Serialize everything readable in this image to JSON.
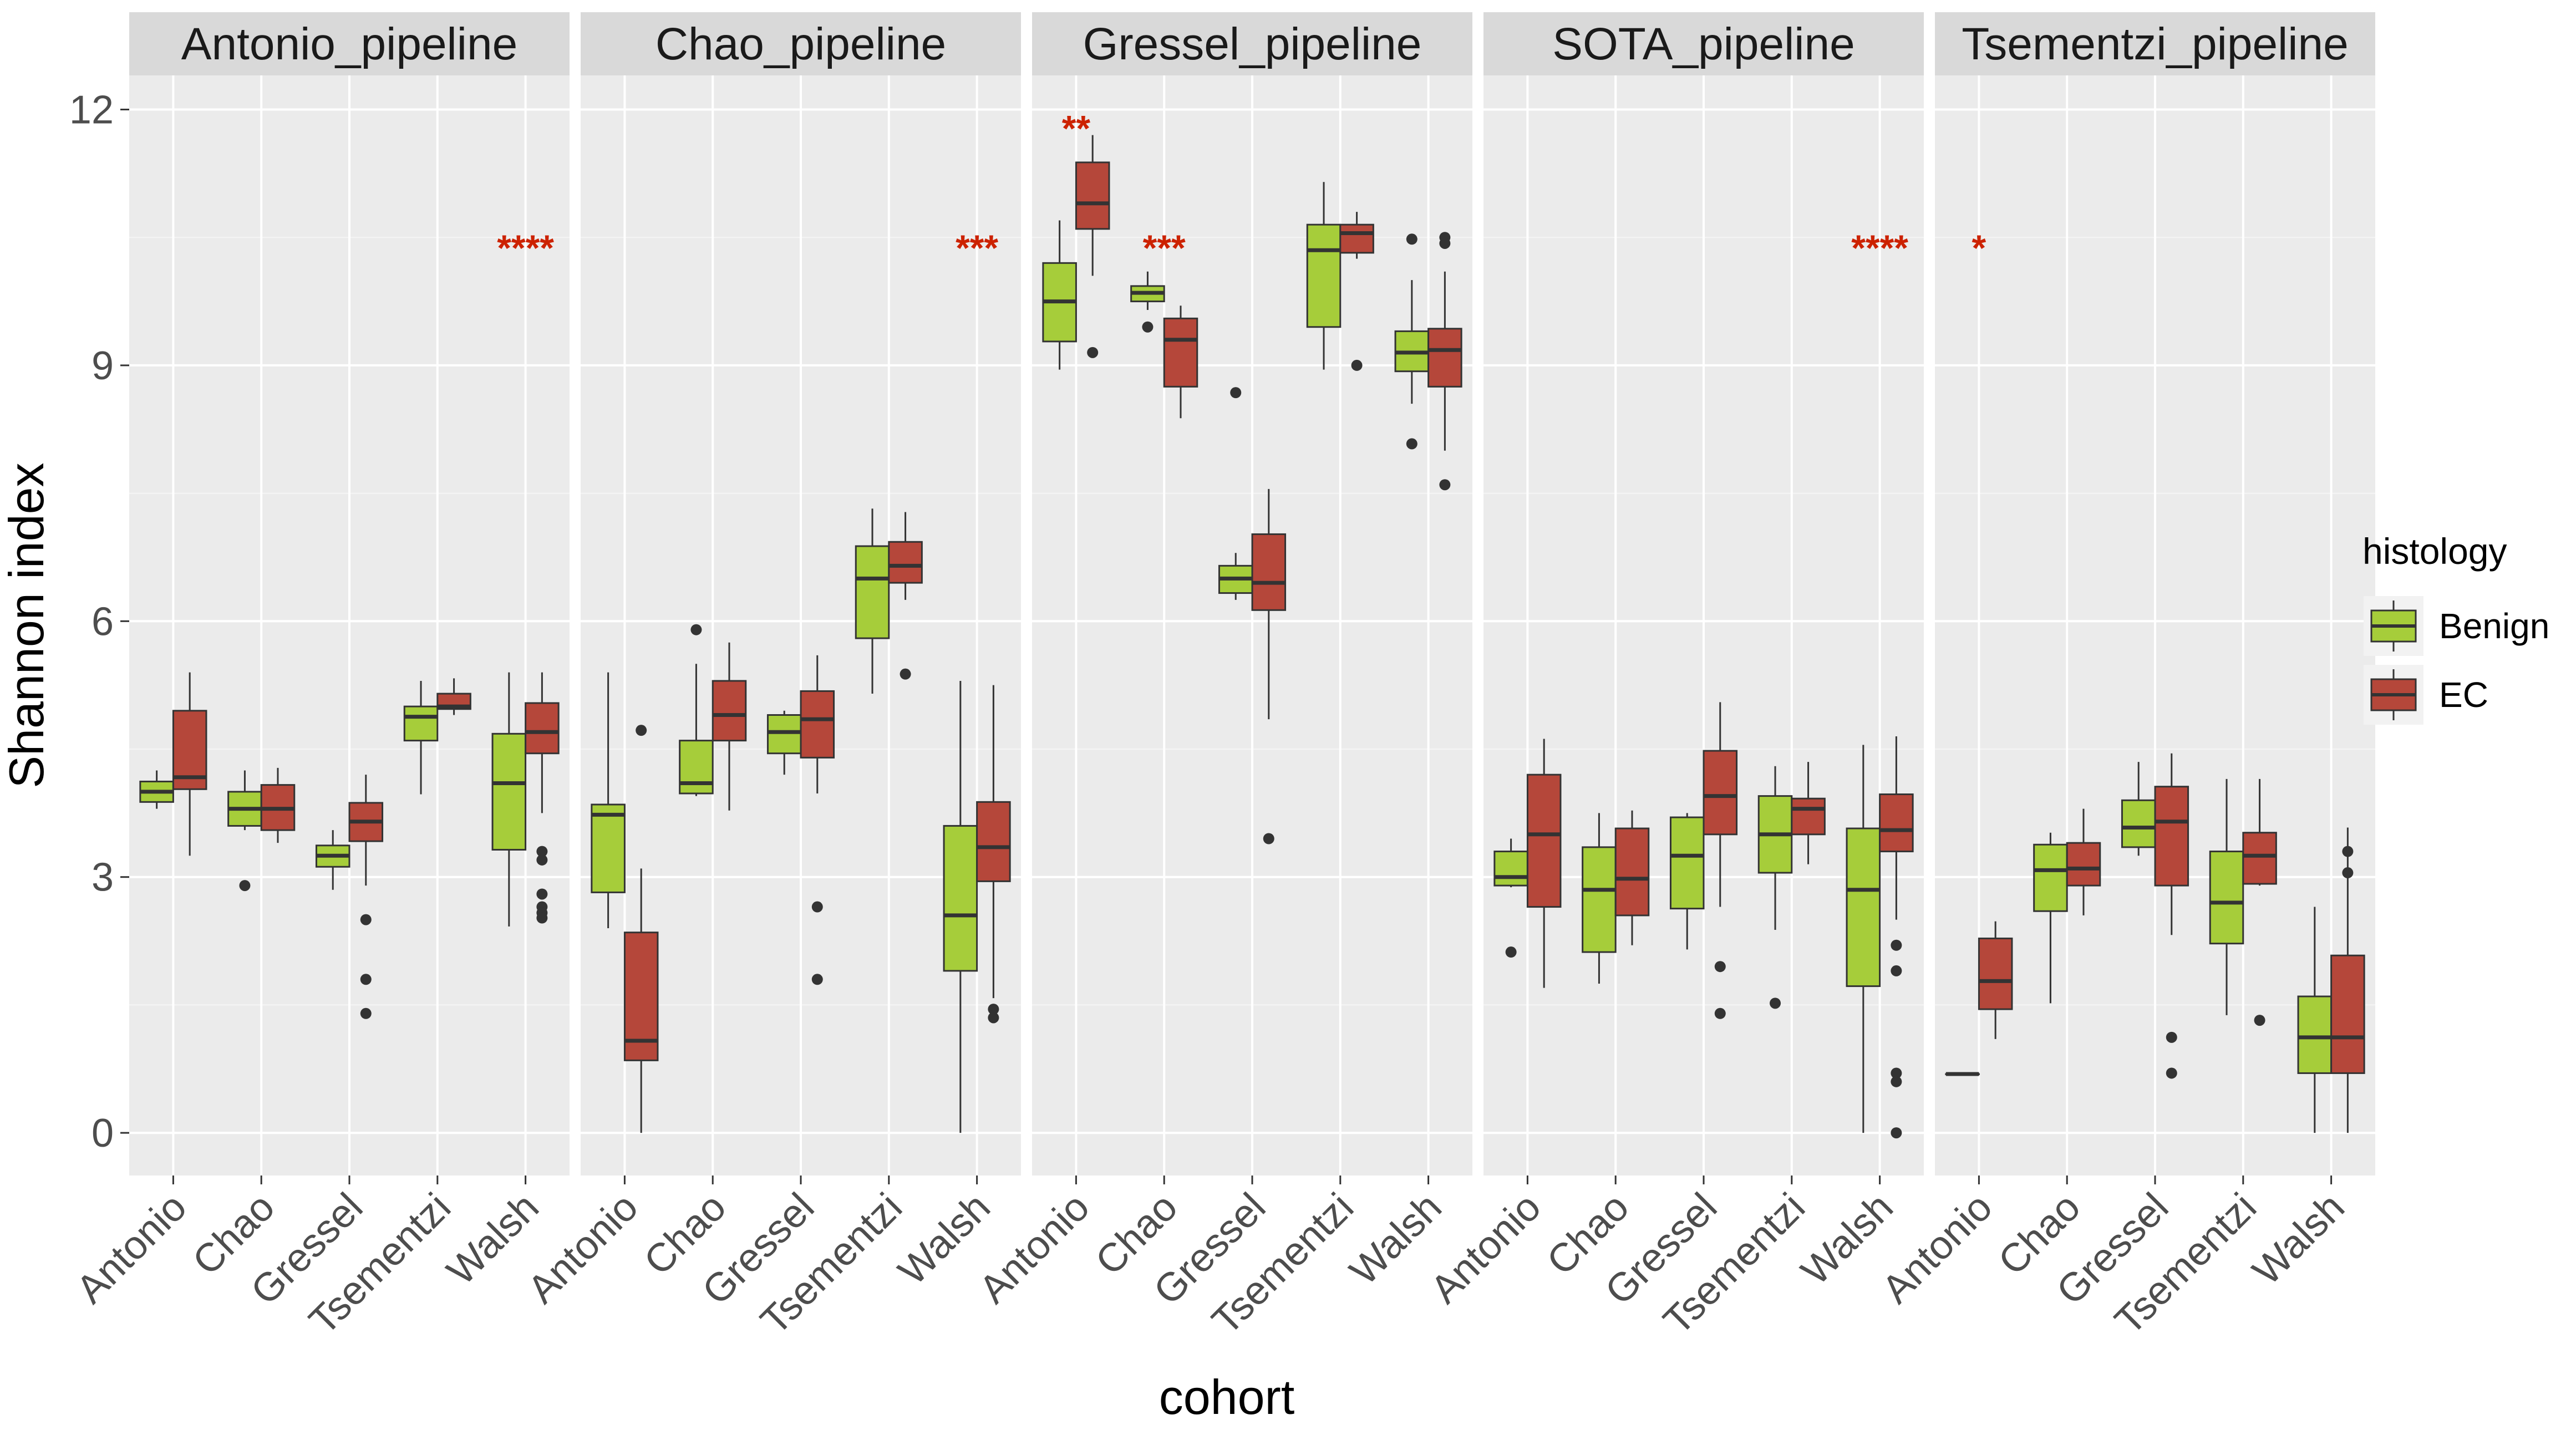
{
  "chart_data": {
    "type": "boxplot",
    "xlabel": "cohort",
    "ylabel": "Shannon index",
    "ylim": [
      -0.5,
      12.4
    ],
    "y_ticks": [
      0,
      3,
      6,
      9,
      12
    ],
    "y_tick_labels": [
      "0",
      "3",
      "6",
      "9",
      "12"
    ],
    "categories": [
      "Antonio",
      "Chao",
      "Gressel",
      "Tsementzi",
      "Walsh"
    ],
    "legend": {
      "title": "histology",
      "position": "right",
      "entries": [
        {
          "name": "Benign",
          "color": "#a6cd3a"
        },
        {
          "name": "EC",
          "color": "#b5473a"
        }
      ]
    },
    "significance_color": "#cc2200",
    "panels": [
      {
        "title": "Antonio_pipeline",
        "significance": [
          {
            "category": "Walsh",
            "label": "****",
            "y": 10.45
          }
        ],
        "boxes": [
          {
            "category": "Antonio",
            "group": "Benign",
            "whisker_low": 3.8,
            "q1": 3.88,
            "median": 4.0,
            "q3": 4.12,
            "whisker_high": 4.25,
            "outliers": []
          },
          {
            "category": "Antonio",
            "group": "EC",
            "whisker_low": 3.25,
            "q1": 4.03,
            "median": 4.17,
            "q3": 4.95,
            "whisker_high": 5.4,
            "outliers": []
          },
          {
            "category": "Chao",
            "group": "Benign",
            "whisker_low": 3.55,
            "q1": 3.6,
            "median": 3.8,
            "q3": 4.0,
            "whisker_high": 4.25,
            "outliers": [
              2.9
            ]
          },
          {
            "category": "Chao",
            "group": "EC",
            "whisker_low": 3.4,
            "q1": 3.55,
            "median": 3.8,
            "q3": 4.08,
            "whisker_high": 4.28,
            "outliers": []
          },
          {
            "category": "Gressel",
            "group": "Benign",
            "whisker_low": 2.85,
            "q1": 3.12,
            "median": 3.25,
            "q3": 3.37,
            "whisker_high": 3.55,
            "outliers": []
          },
          {
            "category": "Gressel",
            "group": "EC",
            "whisker_low": 2.9,
            "q1": 3.42,
            "median": 3.65,
            "q3": 3.87,
            "whisker_high": 4.2,
            "outliers": [
              2.5,
              1.8,
              1.4
            ]
          },
          {
            "category": "Tsementzi",
            "group": "Benign",
            "whisker_low": 3.97,
            "q1": 4.6,
            "median": 4.88,
            "q3": 5.0,
            "whisker_high": 5.3,
            "outliers": []
          },
          {
            "category": "Tsementzi",
            "group": "EC",
            "whisker_low": 4.9,
            "q1": 4.97,
            "median": 5.0,
            "q3": 5.15,
            "whisker_high": 5.33,
            "outliers": []
          },
          {
            "category": "Walsh",
            "group": "Benign",
            "whisker_low": 2.42,
            "q1": 3.32,
            "median": 4.1,
            "q3": 4.68,
            "whisker_high": 5.4,
            "outliers": []
          },
          {
            "category": "Walsh",
            "group": "EC",
            "whisker_low": 3.75,
            "q1": 4.45,
            "median": 4.7,
            "q3": 5.04,
            "whisker_high": 5.4,
            "outliers": [
              3.3,
              3.2,
              2.8,
              2.65,
              2.58,
              2.52
            ]
          }
        ]
      },
      {
        "title": "Chao_pipeline",
        "significance": [
          {
            "category": "Walsh",
            "label": "***",
            "y": 10.45
          }
        ],
        "boxes": [
          {
            "category": "Antonio",
            "group": "Benign",
            "whisker_low": 2.4,
            "q1": 2.82,
            "median": 3.73,
            "q3": 3.85,
            "whisker_high": 5.4,
            "outliers": []
          },
          {
            "category": "Antonio",
            "group": "EC",
            "whisker_low": 0.0,
            "q1": 0.85,
            "median": 1.08,
            "q3": 2.35,
            "whisker_high": 3.1,
            "outliers": [
              4.72
            ]
          },
          {
            "category": "Chao",
            "group": "Benign",
            "whisker_low": 3.95,
            "q1": 3.98,
            "median": 4.1,
            "q3": 4.6,
            "whisker_high": 5.5,
            "outliers": [
              5.9
            ]
          },
          {
            "category": "Chao",
            "group": "EC",
            "whisker_low": 3.78,
            "q1": 4.6,
            "median": 4.9,
            "q3": 5.3,
            "whisker_high": 5.75,
            "outliers": []
          },
          {
            "category": "Gressel",
            "group": "Benign",
            "whisker_low": 4.2,
            "q1": 4.45,
            "median": 4.7,
            "q3": 4.9,
            "whisker_high": 4.95,
            "outliers": []
          },
          {
            "category": "Gressel",
            "group": "EC",
            "whisker_low": 3.98,
            "q1": 4.4,
            "median": 4.85,
            "q3": 5.18,
            "whisker_high": 5.6,
            "outliers": [
              2.65,
              1.8
            ]
          },
          {
            "category": "Tsementzi",
            "group": "Benign",
            "whisker_low": 5.15,
            "q1": 5.8,
            "median": 6.5,
            "q3": 6.88,
            "whisker_high": 7.32,
            "outliers": []
          },
          {
            "category": "Tsementzi",
            "group": "EC",
            "whisker_low": 6.25,
            "q1": 6.45,
            "median": 6.65,
            "q3": 6.93,
            "whisker_high": 7.28,
            "outliers": [
              5.38
            ]
          },
          {
            "category": "Walsh",
            "group": "Benign",
            "whisker_low": 0.0,
            "q1": 1.9,
            "median": 2.55,
            "q3": 3.6,
            "whisker_high": 5.3,
            "outliers": []
          },
          {
            "category": "Walsh",
            "group": "EC",
            "whisker_low": 1.58,
            "q1": 2.95,
            "median": 3.35,
            "q3": 3.88,
            "whisker_high": 5.25,
            "outliers": [
              1.45,
              1.35
            ]
          }
        ]
      },
      {
        "title": "Gressel_pipeline",
        "significance": [
          {
            "category": "Antonio",
            "label": "**",
            "y": 11.85
          },
          {
            "category": "Chao",
            "label": "***",
            "y": 10.45
          }
        ],
        "boxes": [
          {
            "category": "Antonio",
            "group": "Benign",
            "whisker_low": 8.95,
            "q1": 9.28,
            "median": 9.75,
            "q3": 10.2,
            "whisker_high": 10.7,
            "outliers": []
          },
          {
            "category": "Antonio",
            "group": "EC",
            "whisker_low": 10.05,
            "q1": 10.6,
            "median": 10.9,
            "q3": 11.38,
            "whisker_high": 11.7,
            "outliers": [
              9.15
            ]
          },
          {
            "category": "Chao",
            "group": "Benign",
            "whisker_low": 9.65,
            "q1": 9.75,
            "median": 9.85,
            "q3": 9.93,
            "whisker_high": 10.1,
            "outliers": [
              9.45
            ]
          },
          {
            "category": "Chao",
            "group": "EC",
            "whisker_low": 8.38,
            "q1": 8.75,
            "median": 9.3,
            "q3": 9.55,
            "whisker_high": 9.7,
            "outliers": []
          },
          {
            "category": "Gressel",
            "group": "Benign",
            "whisker_low": 6.25,
            "q1": 6.33,
            "median": 6.5,
            "q3": 6.65,
            "whisker_high": 6.8,
            "outliers": [
              8.68
            ]
          },
          {
            "category": "Gressel",
            "group": "EC",
            "whisker_low": 4.85,
            "q1": 6.13,
            "median": 6.45,
            "q3": 7.02,
            "whisker_high": 7.55,
            "outliers": [
              3.45
            ]
          },
          {
            "category": "Tsementzi",
            "group": "Benign",
            "whisker_low": 8.95,
            "q1": 9.45,
            "median": 10.35,
            "q3": 10.65,
            "whisker_high": 11.15,
            "outliers": []
          },
          {
            "category": "Tsementzi",
            "group": "EC",
            "whisker_low": 10.25,
            "q1": 10.32,
            "median": 10.55,
            "q3": 10.65,
            "whisker_high": 10.8,
            "outliers": [
              9.0
            ]
          },
          {
            "category": "Walsh",
            "group": "Benign",
            "whisker_low": 8.55,
            "q1": 8.93,
            "median": 9.15,
            "q3": 9.4,
            "whisker_high": 10.0,
            "outliers": [
              10.48,
              8.08
            ]
          },
          {
            "category": "Walsh",
            "group": "EC",
            "whisker_low": 8.0,
            "q1": 8.75,
            "median": 9.18,
            "q3": 9.43,
            "whisker_high": 10.1,
            "outliers": [
              10.5,
              10.43,
              7.6
            ]
          }
        ]
      },
      {
        "title": "SOTA_pipeline",
        "significance": [
          {
            "category": "Walsh",
            "label": "****",
            "y": 10.45
          }
        ],
        "boxes": [
          {
            "category": "Antonio",
            "group": "Benign",
            "whisker_low": 2.88,
            "q1": 2.9,
            "median": 3.0,
            "q3": 3.3,
            "whisker_high": 3.45,
            "outliers": [
              2.12
            ]
          },
          {
            "category": "Antonio",
            "group": "EC",
            "whisker_low": 1.7,
            "q1": 2.65,
            "median": 3.5,
            "q3": 4.2,
            "whisker_high": 4.62,
            "outliers": []
          },
          {
            "category": "Chao",
            "group": "Benign",
            "whisker_low": 1.75,
            "q1": 2.12,
            "median": 2.85,
            "q3": 3.35,
            "whisker_high": 3.75,
            "outliers": []
          },
          {
            "category": "Chao",
            "group": "EC",
            "whisker_low": 2.2,
            "q1": 2.55,
            "median": 2.98,
            "q3": 3.57,
            "whisker_high": 3.78,
            "outliers": []
          },
          {
            "category": "Gressel",
            "group": "Benign",
            "whisker_low": 2.15,
            "q1": 2.63,
            "median": 3.25,
            "q3": 3.7,
            "whisker_high": 3.75,
            "outliers": []
          },
          {
            "category": "Gressel",
            "group": "EC",
            "whisker_low": 2.65,
            "q1": 3.5,
            "median": 3.95,
            "q3": 4.48,
            "whisker_high": 5.05,
            "outliers": [
              1.95,
              1.4
            ]
          },
          {
            "category": "Tsementzi",
            "group": "Benign",
            "whisker_low": 2.38,
            "q1": 3.05,
            "median": 3.5,
            "q3": 3.95,
            "whisker_high": 4.3,
            "outliers": [
              1.52
            ]
          },
          {
            "category": "Tsementzi",
            "group": "EC",
            "whisker_low": 3.15,
            "q1": 3.5,
            "median": 3.8,
            "q3": 3.92,
            "whisker_high": 4.35,
            "outliers": []
          },
          {
            "category": "Walsh",
            "group": "Benign",
            "whisker_low": 0.0,
            "q1": 1.72,
            "median": 2.85,
            "q3": 3.57,
            "whisker_high": 4.55,
            "outliers": []
          },
          {
            "category": "Walsh",
            "group": "EC",
            "whisker_low": 2.5,
            "q1": 3.3,
            "median": 3.55,
            "q3": 3.97,
            "whisker_high": 4.65,
            "outliers": [
              2.2,
              1.9,
              0.7,
              0.6,
              0.0
            ]
          }
        ]
      },
      {
        "title": "Tsementzi_pipeline",
        "significance": [
          {
            "category": "Antonio",
            "label": "*",
            "y": 10.45
          }
        ],
        "boxes": [
          {
            "category": "Antonio",
            "group": "Benign",
            "whisker_low": 0.69,
            "q1": 0.69,
            "median": 0.69,
            "q3": 0.69,
            "whisker_high": 0.69,
            "outliers": []
          },
          {
            "category": "Antonio",
            "group": "EC",
            "whisker_low": 1.1,
            "q1": 1.45,
            "median": 1.78,
            "q3": 2.28,
            "whisker_high": 2.48,
            "outliers": []
          },
          {
            "category": "Chao",
            "group": "Benign",
            "whisker_low": 1.52,
            "q1": 2.6,
            "median": 3.08,
            "q3": 3.38,
            "whisker_high": 3.52,
            "outliers": []
          },
          {
            "category": "Chao",
            "group": "EC",
            "whisker_low": 2.55,
            "q1": 2.9,
            "median": 3.1,
            "q3": 3.4,
            "whisker_high": 3.8,
            "outliers": []
          },
          {
            "category": "Gressel",
            "group": "Benign",
            "whisker_low": 3.25,
            "q1": 3.35,
            "median": 3.58,
            "q3": 3.9,
            "whisker_high": 4.35,
            "outliers": []
          },
          {
            "category": "Gressel",
            "group": "EC",
            "whisker_low": 2.32,
            "q1": 2.9,
            "median": 3.65,
            "q3": 4.06,
            "whisker_high": 4.45,
            "outliers": [
              1.12,
              0.7
            ]
          },
          {
            "category": "Tsementzi",
            "group": "Benign",
            "whisker_low": 1.38,
            "q1": 2.22,
            "median": 2.7,
            "q3": 3.3,
            "whisker_high": 4.15,
            "outliers": []
          },
          {
            "category": "Tsementzi",
            "group": "EC",
            "whisker_low": 2.9,
            "q1": 2.92,
            "median": 3.25,
            "q3": 3.52,
            "whisker_high": 4.15,
            "outliers": [
              1.32
            ]
          },
          {
            "category": "Walsh",
            "group": "Benign",
            "whisker_low": 0.0,
            "q1": 0.7,
            "median": 1.12,
            "q3": 1.6,
            "whisker_high": 2.65,
            "outliers": []
          },
          {
            "category": "Walsh",
            "group": "EC",
            "whisker_low": 0.0,
            "q1": 0.7,
            "median": 1.12,
            "q3": 2.08,
            "whisker_high": 3.58,
            "outliers": [
              3.3,
              3.05
            ]
          }
        ]
      }
    ]
  }
}
